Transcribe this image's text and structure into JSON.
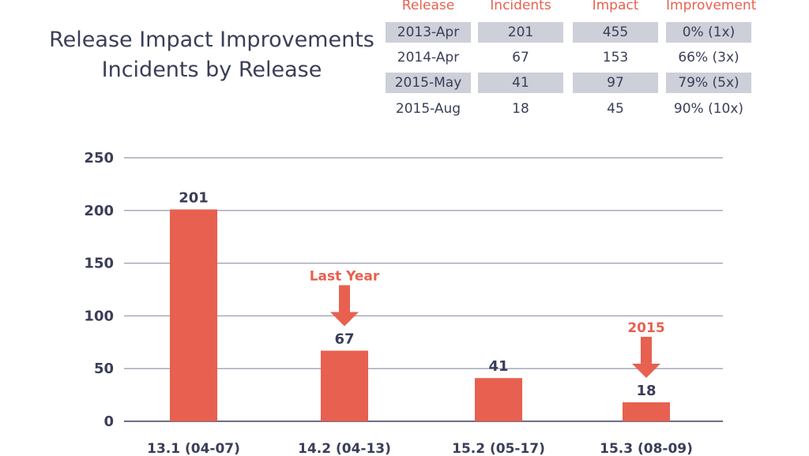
{
  "title": {
    "line1": "Release Impact Improvements",
    "line2": "Incidents by Release"
  },
  "table": {
    "headers": [
      "Release",
      "Incidents",
      "Impact",
      "Improvement"
    ],
    "rows": [
      [
        "2013-Apr",
        "201",
        "455",
        "0% (1x)"
      ],
      [
        "2014-Apr",
        "67",
        "153",
        "66% (3x)"
      ],
      [
        "2015-May",
        "41",
        "97",
        "79% (5x)"
      ],
      [
        "2015-Aug",
        "18",
        "45",
        "90% (10x)"
      ]
    ]
  },
  "colors": {
    "bar": "#e8604f",
    "text": "#3a3e58",
    "grid": "#a7a9bb",
    "shade": "#cdcfd9"
  },
  "chart_data": {
    "type": "bar",
    "title": "Incidents by Release",
    "categories": [
      "13.1 (04-07)",
      "14.2 (04-13)",
      "15.2 (05-17)",
      "15.3 (08-09)"
    ],
    "values": [
      201,
      67,
      41,
      18
    ],
    "ylim": [
      0,
      250
    ],
    "yticks": [
      0,
      50,
      100,
      150,
      200,
      250
    ],
    "xlabel": "",
    "ylabel": "",
    "grid": true,
    "annotations": [
      {
        "text": "Last Year",
        "category_index": 1
      },
      {
        "text": "2015",
        "category_index": 3
      }
    ]
  }
}
